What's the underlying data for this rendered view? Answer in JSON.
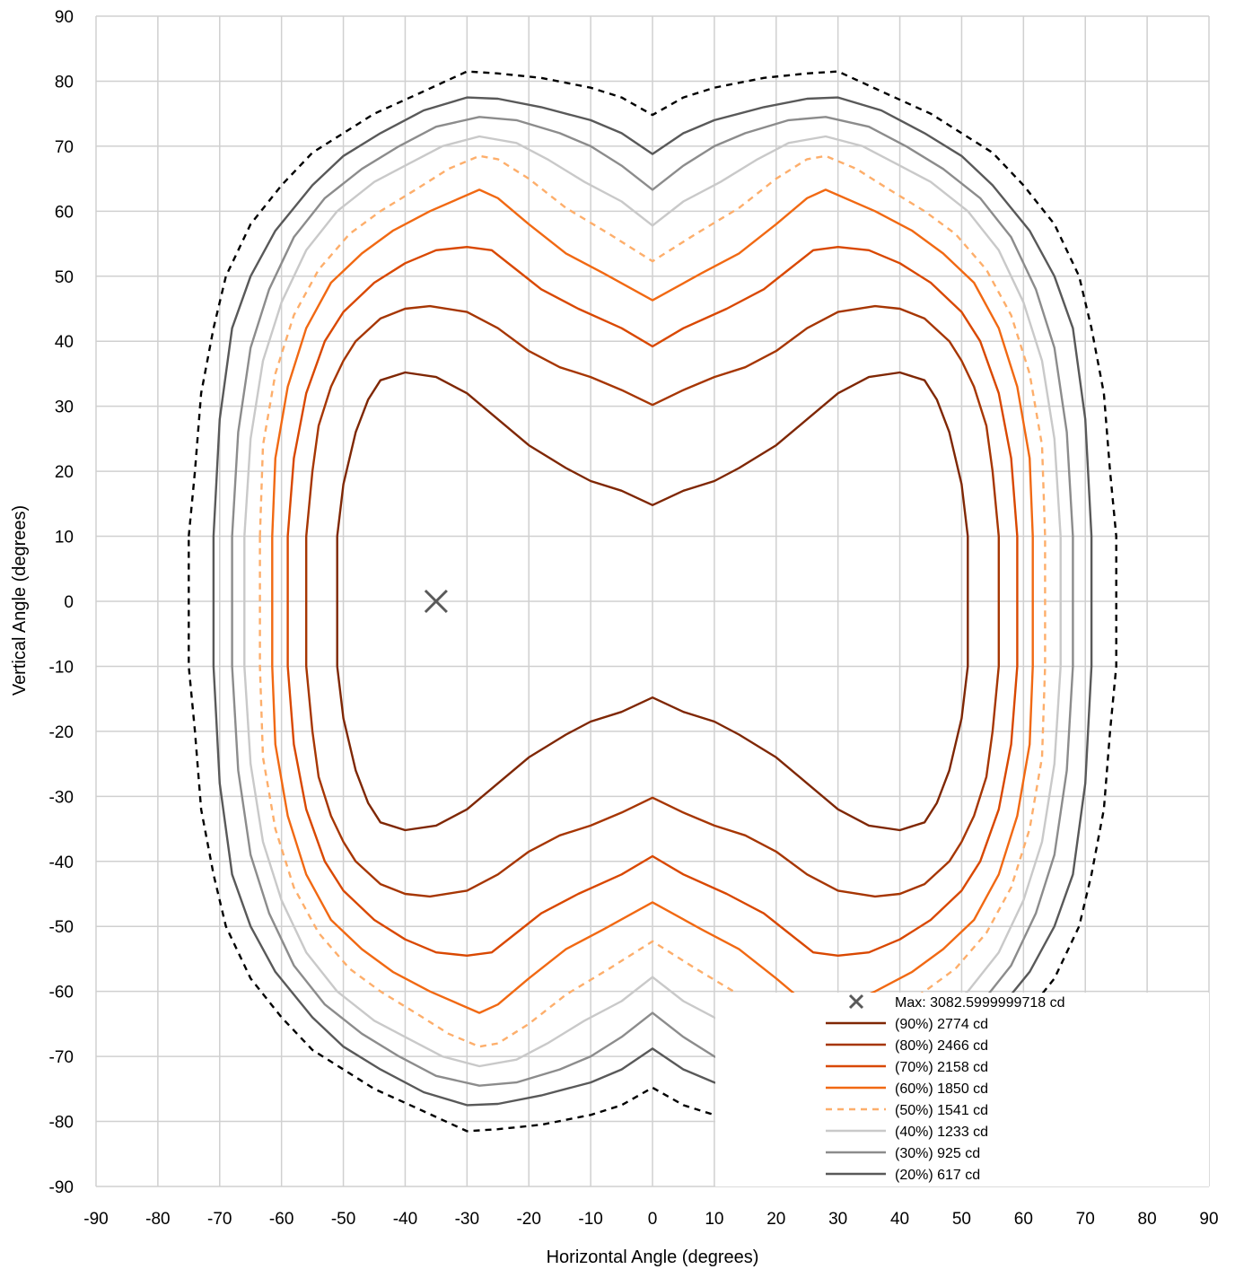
{
  "chart_data": {
    "type": "line",
    "subtype": "isocandela-contour",
    "xlabel": "Horizontal Angle (degrees)",
    "ylabel": "Vertical Angle (degrees)",
    "xlim": [
      -90,
      90
    ],
    "ylim": [
      -90,
      90
    ],
    "x_ticks": [
      -90,
      -80,
      -70,
      -60,
      -50,
      -40,
      -30,
      -20,
      -10,
      0,
      10,
      20,
      30,
      40,
      50,
      60,
      70,
      80,
      90
    ],
    "y_ticks": [
      90,
      80,
      70,
      60,
      50,
      40,
      30,
      20,
      10,
      0,
      -10,
      -20,
      -30,
      -40,
      -50,
      -60,
      -70,
      -80,
      -90
    ],
    "grid": true,
    "legend_position": "bottom-right",
    "max_point": {
      "label": "Max: 3082.5999999718 cd",
      "x": -35,
      "y": 0,
      "color": "#595959"
    },
    "series": [
      {
        "name": "(90%) 2774 cd",
        "color": "#7f2704",
        "dash": "solid",
        "upper": [
          [
            -51,
            10
          ],
          [
            -50,
            18
          ],
          [
            -48,
            26
          ],
          [
            -46,
            31
          ],
          [
            -44,
            34
          ],
          [
            -40,
            35.2
          ],
          [
            -35,
            34.5
          ],
          [
            -30,
            32
          ],
          [
            -25,
            28
          ],
          [
            -20,
            24
          ],
          [
            -14,
            20.5
          ],
          [
            -10,
            18.5
          ],
          [
            -5,
            17
          ],
          [
            0,
            14.8
          ]
        ]
      },
      {
        "name": "(80%) 2466 cd",
        "color": "#a63603",
        "dash": "solid",
        "upper": [
          [
            -56,
            10
          ],
          [
            -55,
            20
          ],
          [
            -54,
            27
          ],
          [
            -52,
            33
          ],
          [
            -50,
            37
          ],
          [
            -48,
            40
          ],
          [
            -44,
            43.5
          ],
          [
            -40,
            45
          ],
          [
            -36,
            45.4
          ],
          [
            -30,
            44.5
          ],
          [
            -25,
            42
          ],
          [
            -20,
            38.5
          ],
          [
            -15,
            36
          ],
          [
            -10,
            34.5
          ],
          [
            -5,
            32.5
          ],
          [
            0,
            30.2
          ]
        ]
      },
      {
        "name": "(70%) 2158 cd",
        "color": "#d94801",
        "dash": "solid",
        "upper": [
          [
            -59,
            10
          ],
          [
            -58,
            22
          ],
          [
            -56,
            32
          ],
          [
            -53,
            40
          ],
          [
            -50,
            44.5
          ],
          [
            -45,
            49
          ],
          [
            -40,
            52
          ],
          [
            -35,
            54
          ],
          [
            -30,
            54.5
          ],
          [
            -26,
            54
          ],
          [
            -22,
            51
          ],
          [
            -18,
            48
          ],
          [
            -12,
            45
          ],
          [
            -5,
            42
          ],
          [
            0,
            39.2
          ]
        ]
      },
      {
        "name": "(60%) 1850 cd",
        "color": "#f16913",
        "dash": "solid",
        "upper": [
          [
            -61.5,
            10
          ],
          [
            -61,
            22
          ],
          [
            -59,
            33
          ],
          [
            -56,
            42
          ],
          [
            -52,
            49
          ],
          [
            -47,
            53.5
          ],
          [
            -42,
            57
          ],
          [
            -36,
            60
          ],
          [
            -28,
            63.3
          ],
          [
            -25,
            62
          ],
          [
            -20,
            58
          ],
          [
            -14,
            53.5
          ],
          [
            -8,
            50.5
          ],
          [
            0,
            46.3
          ]
        ]
      },
      {
        "name": "(50%) 1541 cd",
        "color": "#fdae6b",
        "dash": "dashed",
        "upper": [
          [
            -63.5,
            10
          ],
          [
            -63,
            24
          ],
          [
            -61,
            35
          ],
          [
            -58,
            44
          ],
          [
            -54,
            51
          ],
          [
            -49,
            56.5
          ],
          [
            -44,
            60
          ],
          [
            -38,
            63.5
          ],
          [
            -33,
            66.5
          ],
          [
            -28,
            68.5
          ],
          [
            -25,
            68
          ],
          [
            -20,
            65
          ],
          [
            -14,
            60.5
          ],
          [
            -7,
            56.5
          ],
          [
            0,
            52.3
          ]
        ]
      },
      {
        "name": "(40%) 1233 cd",
        "color": "#c9c9c9",
        "dash": "solid",
        "upper": [
          [
            -66,
            10
          ],
          [
            -65,
            25
          ],
          [
            -63,
            37
          ],
          [
            -60,
            46
          ],
          [
            -56,
            54
          ],
          [
            -51,
            60
          ],
          [
            -45,
            64.5
          ],
          [
            -40,
            67
          ],
          [
            -34,
            70
          ],
          [
            -28,
            71.5
          ],
          [
            -22,
            70.5
          ],
          [
            -17,
            68
          ],
          [
            -11,
            64.5
          ],
          [
            -5,
            61.5
          ],
          [
            0,
            57.8
          ]
        ]
      },
      {
        "name": "(30%) 925 cd",
        "color": "#8c8c8c",
        "dash": "solid",
        "upper": [
          [
            -68,
            10
          ],
          [
            -67,
            26
          ],
          [
            -65,
            39
          ],
          [
            -62,
            48
          ],
          [
            -58,
            56
          ],
          [
            -53,
            62
          ],
          [
            -47,
            66.5
          ],
          [
            -41,
            70
          ],
          [
            -35,
            73
          ],
          [
            -28,
            74.5
          ],
          [
            -22,
            74
          ],
          [
            -15,
            72
          ],
          [
            -10,
            70
          ],
          [
            -5,
            67
          ],
          [
            0,
            63.3
          ]
        ]
      },
      {
        "name": "(20%) 617 cd",
        "color": "#595959",
        "dash": "solid",
        "upper": [
          [
            -71,
            10
          ],
          [
            -70,
            28
          ],
          [
            -68,
            42
          ],
          [
            -65,
            50
          ],
          [
            -61,
            57
          ],
          [
            -55,
            64
          ],
          [
            -50,
            68.5
          ],
          [
            -44,
            72
          ],
          [
            -37,
            75.5
          ],
          [
            -30,
            77.5
          ],
          [
            -25,
            77.3
          ],
          [
            -18,
            76
          ],
          [
            -10,
            74
          ],
          [
            -5,
            72
          ],
          [
            0,
            68.8
          ]
        ]
      },
      {
        "name": "",
        "color": "#000000",
        "dash": "dashed",
        "upper": [
          [
            -75,
            10
          ],
          [
            -74,
            20
          ],
          [
            -73,
            32
          ],
          [
            -71,
            42
          ],
          [
            -69,
            50
          ],
          [
            -65,
            58
          ],
          [
            -60,
            64
          ],
          [
            -55,
            69
          ],
          [
            -50,
            72
          ],
          [
            -45,
            75
          ],
          [
            -38,
            78
          ],
          [
            -30,
            81.5
          ],
          [
            -25,
            81.2
          ],
          [
            -18,
            80.5
          ],
          [
            -10,
            79
          ],
          [
            -5,
            77.5
          ],
          [
            0,
            74.8
          ]
        ]
      }
    ]
  }
}
